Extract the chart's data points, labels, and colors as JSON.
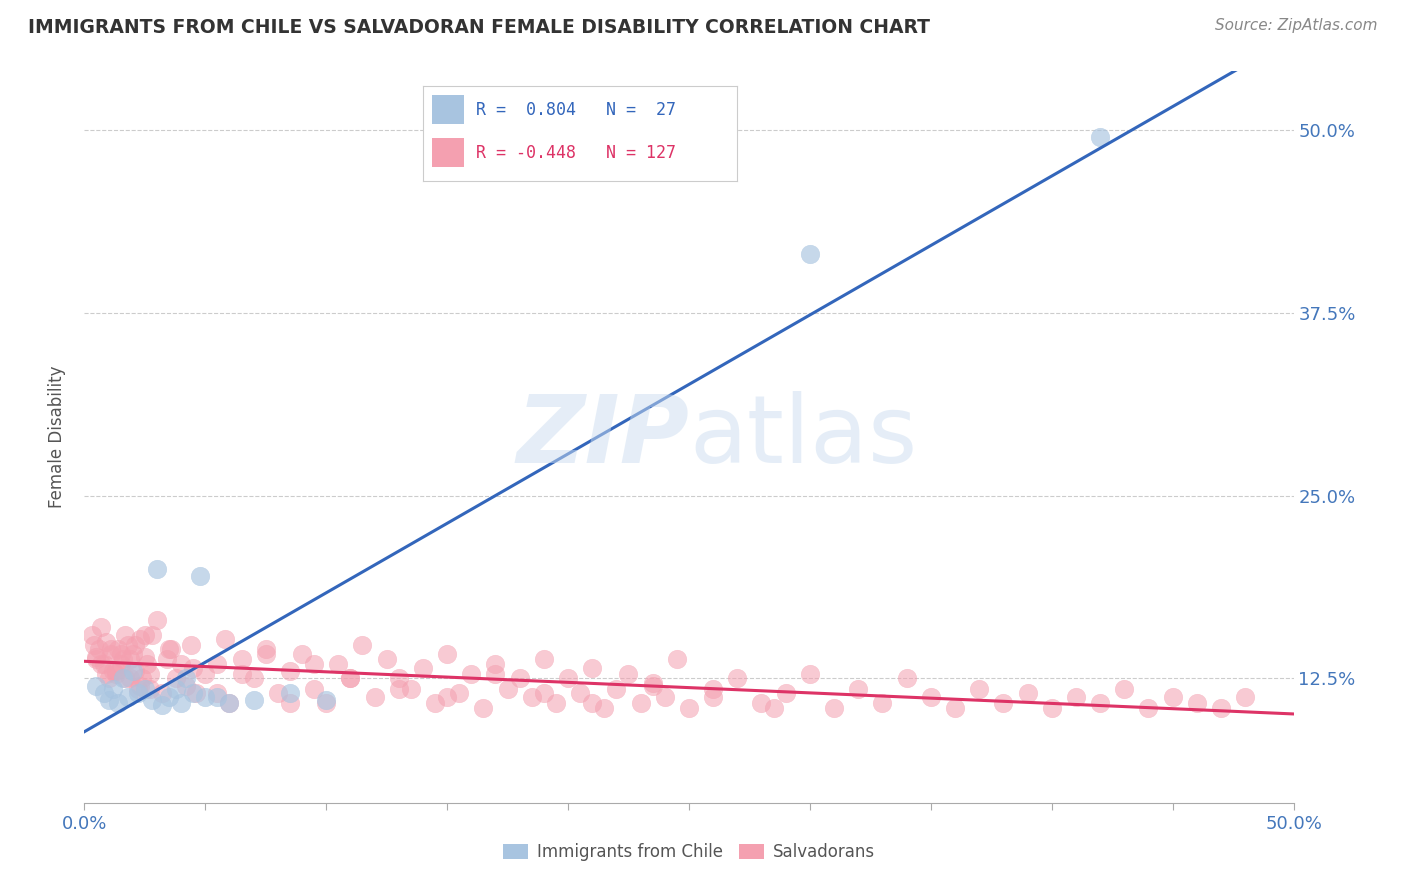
{
  "title": "IMMIGRANTS FROM CHILE VS SALVADORAN FEMALE DISABILITY CORRELATION CHART",
  "source_text": "Source: ZipAtlas.com",
  "ylabel": "Female Disability",
  "xlim": [
    0.0,
    0.5
  ],
  "ylim": [
    0.04,
    0.54
  ],
  "yticks": [
    0.125,
    0.25,
    0.375,
    0.5
  ],
  "ytick_labels": [
    "12.5%",
    "25.0%",
    "37.5%",
    "50.0%"
  ],
  "xtick_ends": [
    "0.0%",
    "50.0%"
  ],
  "blue_R": 0.804,
  "blue_N": 27,
  "pink_R": -0.448,
  "pink_N": 127,
  "blue_color": "#a8c4e0",
  "pink_color": "#f4a0b0",
  "blue_line_color": "#3366bb",
  "pink_line_color": "#dd3366",
  "legend_label_blue": "Immigrants from Chile",
  "legend_label_pink": "Salvadorans",
  "watermark": "ZIPatlas",
  "background_color": "#ffffff",
  "grid_color": "#cccccc",
  "title_color": "#333333",
  "axis_label_color": "#555555",
  "tick_label_color": "#4477bb",
  "blue_scatter_x": [
    0.005,
    0.008,
    0.01,
    0.012,
    0.014,
    0.016,
    0.018,
    0.02,
    0.022,
    0.025,
    0.028,
    0.03,
    0.032,
    0.035,
    0.038,
    0.04,
    0.042,
    0.045,
    0.048,
    0.05,
    0.055,
    0.06,
    0.07,
    0.085,
    0.1,
    0.3,
    0.42
  ],
  "blue_scatter_y": [
    0.12,
    0.115,
    0.11,
    0.118,
    0.108,
    0.125,
    0.112,
    0.13,
    0.115,
    0.118,
    0.11,
    0.2,
    0.107,
    0.112,
    0.118,
    0.108,
    0.125,
    0.115,
    0.195,
    0.112,
    0.112,
    0.108,
    0.11,
    0.115,
    0.11,
    0.415,
    0.495
  ],
  "pink_scatter_x": [
    0.003,
    0.004,
    0.005,
    0.006,
    0.007,
    0.008,
    0.009,
    0.01,
    0.011,
    0.012,
    0.013,
    0.014,
    0.015,
    0.016,
    0.017,
    0.018,
    0.019,
    0.02,
    0.021,
    0.022,
    0.023,
    0.024,
    0.025,
    0.026,
    0.027,
    0.028,
    0.03,
    0.032,
    0.034,
    0.036,
    0.038,
    0.04,
    0.042,
    0.044,
    0.046,
    0.05,
    0.055,
    0.058,
    0.06,
    0.065,
    0.07,
    0.075,
    0.08,
    0.085,
    0.09,
    0.095,
    0.1,
    0.105,
    0.11,
    0.115,
    0.12,
    0.125,
    0.13,
    0.135,
    0.14,
    0.145,
    0.15,
    0.155,
    0.16,
    0.165,
    0.17,
    0.175,
    0.18,
    0.185,
    0.19,
    0.195,
    0.2,
    0.205,
    0.21,
    0.215,
    0.22,
    0.225,
    0.23,
    0.235,
    0.24,
    0.245,
    0.25,
    0.26,
    0.27,
    0.28,
    0.29,
    0.3,
    0.31,
    0.32,
    0.33,
    0.34,
    0.35,
    0.36,
    0.37,
    0.38,
    0.39,
    0.4,
    0.41,
    0.42,
    0.43,
    0.44,
    0.45,
    0.46,
    0.47,
    0.48,
    0.005,
    0.007,
    0.009,
    0.011,
    0.013,
    0.015,
    0.017,
    0.019,
    0.021,
    0.023,
    0.025,
    0.027,
    0.035,
    0.045,
    0.055,
    0.065,
    0.075,
    0.085,
    0.095,
    0.11,
    0.13,
    0.15,
    0.17,
    0.19,
    0.21,
    0.235,
    0.26,
    0.285
  ],
  "pink_scatter_y": [
    0.155,
    0.148,
    0.138,
    0.145,
    0.16,
    0.135,
    0.15,
    0.125,
    0.142,
    0.13,
    0.128,
    0.145,
    0.135,
    0.138,
    0.155,
    0.148,
    0.125,
    0.142,
    0.13,
    0.118,
    0.152,
    0.125,
    0.14,
    0.135,
    0.128,
    0.155,
    0.165,
    0.115,
    0.138,
    0.145,
    0.125,
    0.135,
    0.12,
    0.148,
    0.115,
    0.128,
    0.135,
    0.152,
    0.108,
    0.138,
    0.125,
    0.145,
    0.115,
    0.13,
    0.142,
    0.118,
    0.108,
    0.135,
    0.125,
    0.148,
    0.112,
    0.138,
    0.125,
    0.118,
    0.132,
    0.108,
    0.142,
    0.115,
    0.128,
    0.105,
    0.135,
    0.118,
    0.125,
    0.112,
    0.138,
    0.108,
    0.125,
    0.115,
    0.132,
    0.105,
    0.118,
    0.128,
    0.108,
    0.12,
    0.112,
    0.138,
    0.105,
    0.118,
    0.125,
    0.108,
    0.115,
    0.128,
    0.105,
    0.118,
    0.108,
    0.125,
    0.112,
    0.105,
    0.118,
    0.108,
    0.115,
    0.105,
    0.112,
    0.108,
    0.118,
    0.105,
    0.112,
    0.108,
    0.105,
    0.112,
    0.14,
    0.135,
    0.128,
    0.145,
    0.13,
    0.142,
    0.125,
    0.138,
    0.148,
    0.12,
    0.155,
    0.118,
    0.145,
    0.132,
    0.115,
    0.128,
    0.142,
    0.108,
    0.135,
    0.125,
    0.118,
    0.112,
    0.128,
    0.115,
    0.108,
    0.122,
    0.112,
    0.105
  ]
}
